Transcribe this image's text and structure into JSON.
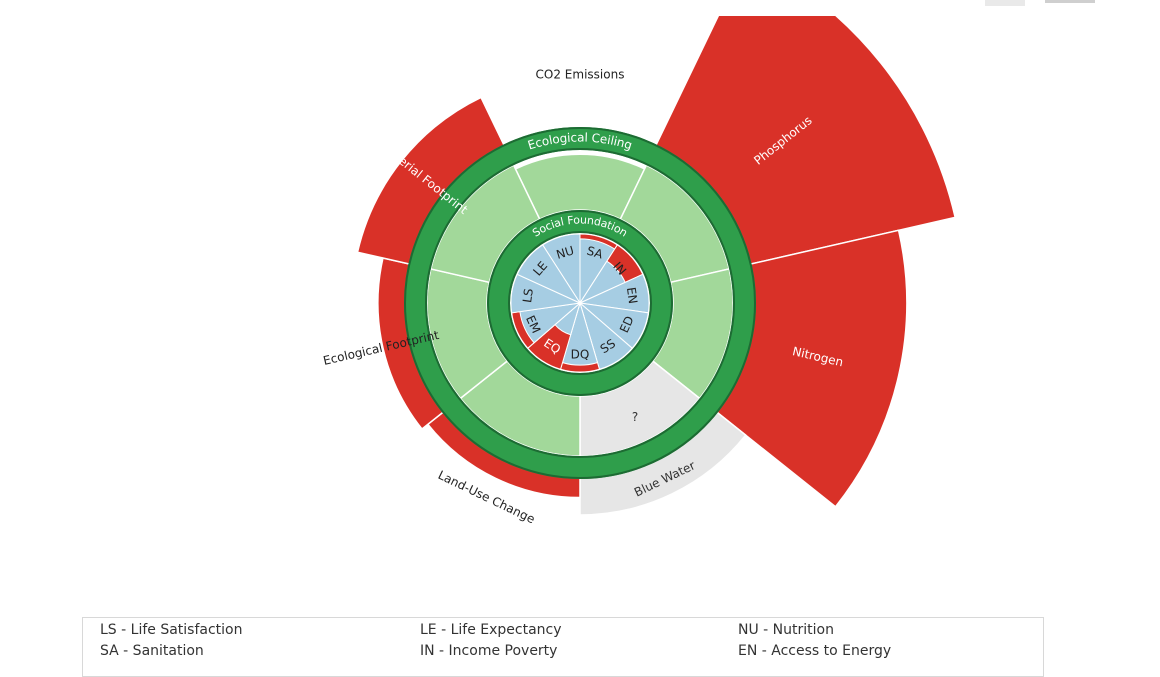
{
  "chart_data": {
    "type": "doughnut-radial",
    "title": "",
    "rings": {
      "outer_label": "Ecological Ceiling",
      "inner_label": "Social Foundation"
    },
    "ecological_ceiling": {
      "order": [
        "CO2 Emissions",
        "Phosphorus",
        "Nitrogen",
        "Blue Water",
        "Land-Use Change",
        "Ecological Footprint",
        "Material Footprint"
      ],
      "indicators": [
        {
          "name": "CO2 Emissions",
          "ratio": 0.93,
          "known": true
        },
        {
          "name": "Phosphorus",
          "ratio": 4.6,
          "known": true
        },
        {
          "name": "Nitrogen",
          "ratio": 3.6,
          "known": true
        },
        {
          "name": "Blue Water",
          "ratio": 1.62,
          "known": false,
          "value_label": "?"
        },
        {
          "name": "Land-Use Change",
          "ratio": 1.32,
          "known": true
        },
        {
          "name": "Ecological Footprint",
          "ratio": 1.45,
          "known": true
        },
        {
          "name": "Material Footprint",
          "ratio": 1.9,
          "known": true
        }
      ]
    },
    "social_foundation": {
      "indicators": [
        {
          "abbr": "NU",
          "achievement": 1.0,
          "shortfall": false
        },
        {
          "abbr": "SA",
          "achievement": 0.93,
          "shortfall": true
        },
        {
          "abbr": "IN",
          "achievement": 0.72,
          "shortfall": true
        },
        {
          "abbr": "EN",
          "achievement": 1.0,
          "shortfall": false
        },
        {
          "abbr": "ED",
          "achievement": 1.0,
          "shortfall": false
        },
        {
          "abbr": "SS",
          "achievement": 1.0,
          "shortfall": false
        },
        {
          "abbr": "DQ",
          "achievement": 0.9,
          "shortfall": true
        },
        {
          "abbr": "EQ",
          "achievement": 0.48,
          "shortfall": true
        },
        {
          "abbr": "EM",
          "achievement": 0.88,
          "shortfall": true
        },
        {
          "abbr": "LS",
          "achievement": 1.0,
          "shortfall": false
        },
        {
          "abbr": "LE",
          "achievement": 1.0,
          "shortfall": false
        }
      ]
    },
    "colors": {
      "overshoot": "#d93128",
      "unknown": "#e6e6e6",
      "safe_space": "#a2d89a",
      "ring": "#2f9e4b",
      "social": "#a6cde3",
      "shortfall": "#d93128"
    }
  },
  "legend": {
    "items": [
      "LS - Life Satisfaction",
      "LE - Life Expectancy",
      "NU - Nutrition",
      "SA - Sanitation",
      "IN - Income Poverty",
      "EN - Access to Energy"
    ]
  }
}
